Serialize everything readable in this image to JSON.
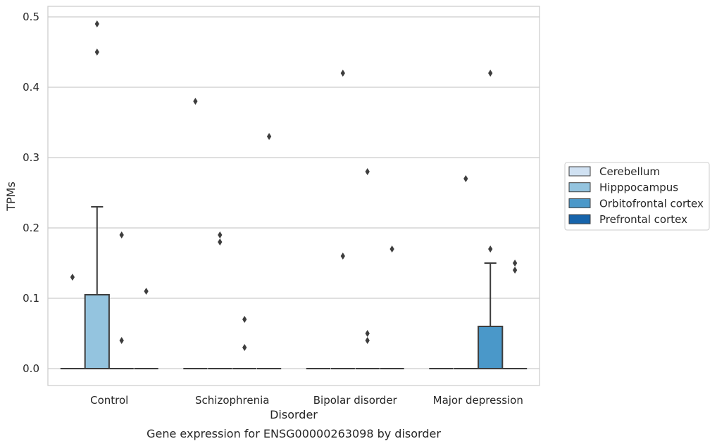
{
  "chart_data": {
    "type": "box",
    "title": "",
    "caption": "Gene expression for ENSG00000263098 by disorder",
    "xlabel": "Disorder",
    "ylabel": "TPMs",
    "ylim": [
      -0.024,
      0.515
    ],
    "yticks": [
      "0.0",
      "0.1",
      "0.2",
      "0.3",
      "0.4",
      "0.5"
    ],
    "ytick_values": [
      0.0,
      0.1,
      0.2,
      0.3,
      0.4,
      0.5
    ],
    "grid": "horizontal",
    "legend_position": "right",
    "categories": [
      "Control",
      "Schizophrenia",
      "Bipolar disorder",
      "Major depression"
    ],
    "series": [
      {
        "name": "Cerebellum",
        "color": "#d0e1f2",
        "boxes": [
          {
            "min": 0,
            "q1": 0,
            "median": 0,
            "q3": 0,
            "max": 0,
            "outliers": [
              0.13
            ]
          },
          {
            "min": 0,
            "q1": 0,
            "median": 0,
            "q3": 0,
            "max": 0,
            "outliers": [
              0.38
            ]
          },
          {
            "min": 0,
            "q1": 0,
            "median": 0,
            "q3": 0,
            "max": 0,
            "outliers": []
          },
          {
            "min": 0,
            "q1": 0,
            "median": 0,
            "q3": 0,
            "max": 0,
            "outliers": []
          }
        ]
      },
      {
        "name": "Hipppocampus",
        "color": "#94c4df",
        "boxes": [
          {
            "min": 0,
            "q1": 0,
            "median": 0,
            "q3": 0.105,
            "max": 0.23,
            "outliers": [
              0.45,
              0.49
            ]
          },
          {
            "min": 0,
            "q1": 0,
            "median": 0,
            "q3": 0,
            "max": 0,
            "outliers": [
              0.18,
              0.19
            ]
          },
          {
            "min": 0,
            "q1": 0,
            "median": 0,
            "q3": 0,
            "max": 0,
            "outliers": [
              0.16,
              0.42
            ]
          },
          {
            "min": 0,
            "q1": 0,
            "median": 0,
            "q3": 0,
            "max": 0,
            "outliers": [
              0.27
            ]
          }
        ]
      },
      {
        "name": "Orbitofrontal cortex",
        "color": "#4a98c9",
        "boxes": [
          {
            "min": 0,
            "q1": 0,
            "median": 0,
            "q3": 0,
            "max": 0,
            "outliers": [
              0.04,
              0.19
            ]
          },
          {
            "min": 0,
            "q1": 0,
            "median": 0,
            "q3": 0,
            "max": 0,
            "outliers": [
              0.03,
              0.07
            ]
          },
          {
            "min": 0,
            "q1": 0,
            "median": 0,
            "q3": 0,
            "max": 0,
            "outliers": [
              0.04,
              0.05,
              0.28
            ]
          },
          {
            "min": 0,
            "q1": 0,
            "median": 0,
            "q3": 0.06,
            "max": 0.15,
            "outliers": [
              0.17,
              0.42
            ]
          }
        ]
      },
      {
        "name": "Prefrontal cortex",
        "color": "#1764ab",
        "boxes": [
          {
            "min": 0,
            "q1": 0,
            "median": 0,
            "q3": 0,
            "max": 0,
            "outliers": [
              0.11
            ]
          },
          {
            "min": 0,
            "q1": 0,
            "median": 0,
            "q3": 0,
            "max": 0,
            "outliers": [
              0.33
            ]
          },
          {
            "min": 0,
            "q1": 0,
            "median": 0,
            "q3": 0,
            "max": 0,
            "outliers": [
              0.17
            ]
          },
          {
            "min": 0,
            "q1": 0,
            "median": 0,
            "q3": 0,
            "max": 0,
            "outliers": [
              0.14,
              0.15
            ]
          }
        ]
      }
    ]
  }
}
